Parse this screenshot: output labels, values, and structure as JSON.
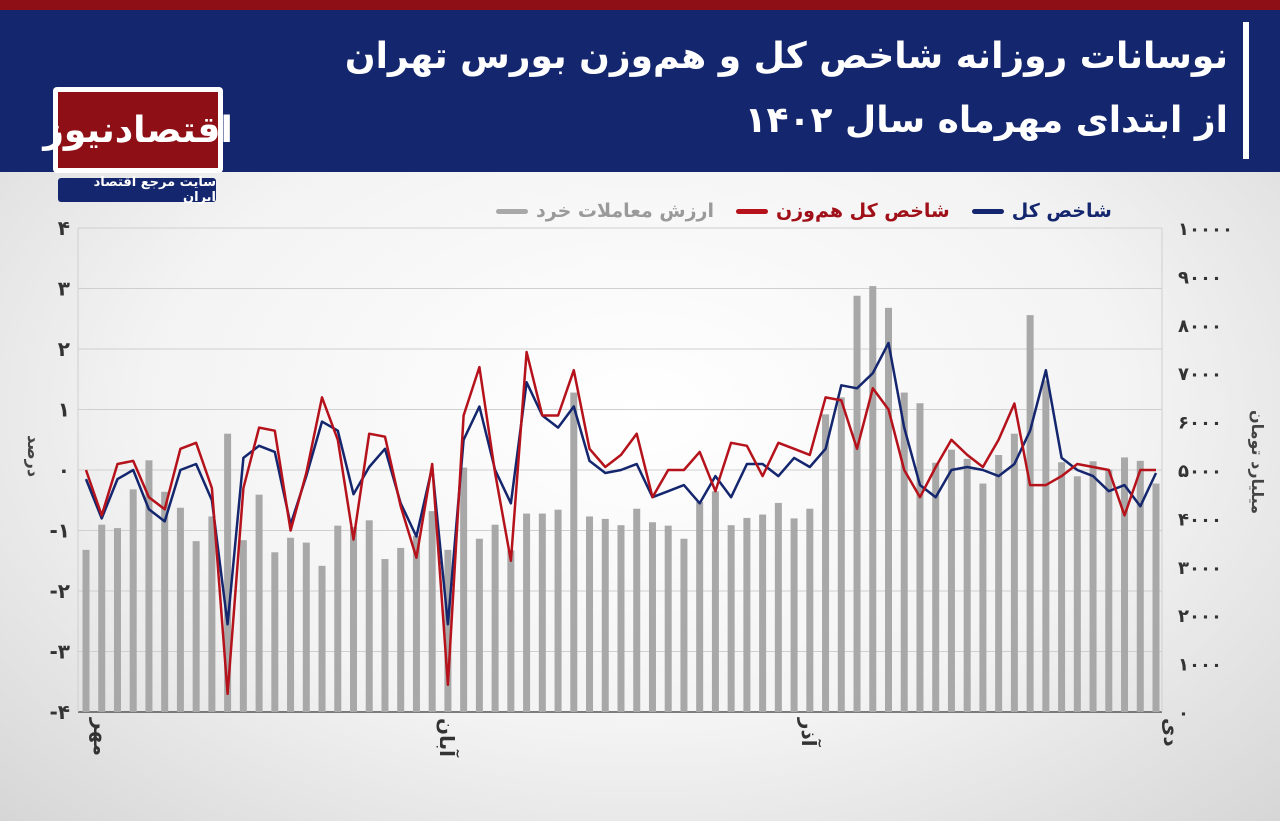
{
  "title": {
    "line1": "نوسانات روزانه شاخص کل و هم‌وزن بورس تهران",
    "line2": "از ابتدای مهرماه سال ۱۴۰۲"
  },
  "logo": {
    "name": "اقتصادنیوز",
    "tagline": "سایت مرجع اقتصاد ایران"
  },
  "colors": {
    "header": "#14266e",
    "accent": "#8e1016",
    "total_index": "#14266e",
    "equal_index": "#b5121b",
    "retail_value": "#a8a8a8"
  },
  "chart_data": {
    "type": "bar+line",
    "legend_position": "top",
    "grid": true,
    "x_month_labels": [
      {
        "label": "مهر",
        "index": 0
      },
      {
        "label": "آبان",
        "index": 22
      },
      {
        "label": "آذر",
        "index": 45
      },
      {
        "label": "دی",
        "index": 68
      }
    ],
    "y_left": {
      "label": "درصد",
      "lim": [
        -4,
        4
      ],
      "ticks": [
        "۴",
        "۳",
        "۲",
        "۱",
        "۰",
        "-۱",
        "-۲",
        "-۳",
        "-۴"
      ]
    },
    "y_right": {
      "label": "میلیارد تومان",
      "lim": [
        0,
        10000
      ],
      "ticks": [
        "۱۰۰۰۰",
        "۹۰۰۰",
        "۸۰۰۰",
        "۷۰۰۰",
        "۶۰۰۰",
        "۵۰۰۰",
        "۴۰۰۰",
        "۳۰۰۰",
        "۲۰۰۰",
        "۱۰۰۰",
        "۰"
      ]
    },
    "series": [
      {
        "name": "شاخص کل",
        "axis": "left",
        "values": [
          -0.15,
          -0.8,
          -0.15,
          0.0,
          -0.65,
          -0.85,
          0.0,
          0.1,
          -0.5,
          -2.55,
          0.2,
          0.4,
          0.3,
          -0.9,
          -0.1,
          0.8,
          0.65,
          -0.4,
          0.05,
          0.35,
          -0.55,
          -1.1,
          0.05,
          -2.55,
          0.5,
          1.05,
          0.0,
          -0.55,
          1.45,
          0.9,
          0.7,
          1.05,
          0.15,
          -0.05,
          0.0,
          0.1,
          -0.45,
          -0.35,
          -0.25,
          -0.55,
          -0.1,
          -0.45,
          0.1,
          0.1,
          -0.1,
          0.2,
          0.05,
          0.35,
          1.4,
          1.35,
          1.6,
          2.1,
          0.7,
          -0.25,
          -0.45,
          0.0,
          0.05,
          0.0,
          -0.1,
          0.1,
          0.65,
          1.65,
          0.2,
          0.0,
          -0.1,
          -0.35,
          -0.25,
          -0.6,
          -0.05
        ]
      },
      {
        "name": "شاخص کل هم‌وزن",
        "axis": "left",
        "values": [
          0.0,
          -0.75,
          0.1,
          0.15,
          -0.45,
          -0.65,
          0.35,
          0.45,
          -0.3,
          -3.7,
          -0.3,
          0.7,
          0.65,
          -1.0,
          -0.05,
          1.2,
          0.5,
          -1.15,
          0.6,
          0.55,
          -0.6,
          -1.45,
          0.1,
          -3.55,
          0.9,
          1.7,
          -0.05,
          -1.5,
          1.95,
          0.9,
          0.9,
          1.65,
          0.35,
          0.05,
          0.25,
          0.6,
          -0.45,
          0.0,
          0.0,
          0.3,
          -0.35,
          0.45,
          0.4,
          -0.1,
          0.45,
          0.35,
          0.25,
          1.2,
          1.15,
          0.35,
          1.35,
          1.0,
          0.0,
          -0.45,
          0.05,
          0.5,
          0.25,
          0.05,
          0.5,
          1.1,
          -0.25,
          -0.25,
          -0.1,
          0.1,
          0.05,
          0.0,
          -0.75,
          0.0,
          0.0
        ]
      },
      {
        "name": "ارزش معاملات خرد",
        "axis": "right",
        "values": [
          3350,
          3870,
          3800,
          4600,
          5200,
          4550,
          4220,
          3530,
          4040,
          5750,
          3550,
          4490,
          3300,
          3600,
          3500,
          3020,
          3850,
          3820,
          3960,
          3160,
          3390,
          3640,
          4150,
          3350,
          5050,
          3580,
          3870,
          3340,
          4100,
          4100,
          4180,
          6600,
          4040,
          3990,
          3860,
          4200,
          3920,
          3850,
          3580,
          4340,
          4560,
          3860,
          4010,
          4080,
          4320,
          4000,
          4200,
          6150,
          6500,
          8600,
          8800,
          8350,
          6600,
          6380,
          5150,
          5420,
          5230,
          4720,
          5310,
          5750,
          8200,
          6850,
          5160,
          4870,
          5180,
          5010,
          5260,
          5190,
          4720
        ]
      }
    ]
  }
}
